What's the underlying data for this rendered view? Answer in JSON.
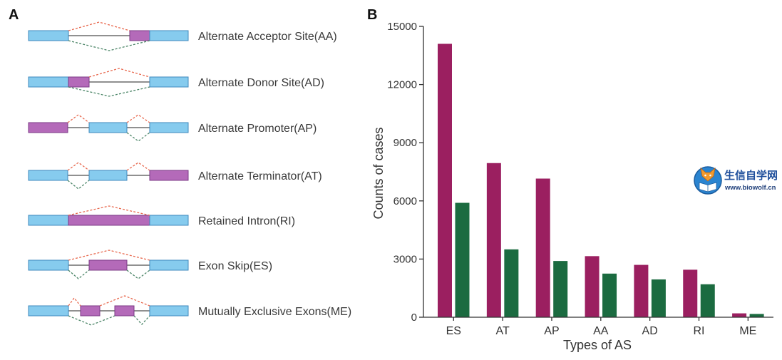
{
  "panel_a": {
    "label": "A",
    "rows": [
      "Alternate Acceptor Site(AA)",
      "Alternate Donor Site(AD)",
      "Alternate Promoter(AP)",
      "Alternate Terminator(AT)",
      "Retained Intron(RI)",
      "Exon Skip(ES)",
      "Mutually Exclusive Exons(ME)"
    ],
    "colors": {
      "constitutive_exon": "#86cbee",
      "alternative_exon": "#b46ab9",
      "upper_junction": "#e8694f",
      "lower_junction": "#4b8567"
    }
  },
  "panel_b": {
    "label": "B"
  },
  "chart_data": {
    "type": "bar",
    "categories": [
      "ES",
      "AT",
      "AP",
      "AA",
      "AD",
      "RI",
      "ME"
    ],
    "series": [
      {
        "values": [
          14100,
          7950,
          7150,
          3150,
          2700,
          2450,
          200
        ],
        "color": "#9b1f60"
      },
      {
        "values": [
          5900,
          3500,
          2900,
          2250,
          1950,
          1700,
          170
        ],
        "color": "#1b6b40"
      }
    ],
    "xlabel": "Types of AS",
    "ylabel": "Counts of cases",
    "ylim": [
      0,
      15000
    ],
    "yticks": [
      0,
      3000,
      6000,
      9000,
      12000,
      15000
    ],
    "grid": false,
    "legend": false
  },
  "watermark": {
    "icon": "wolf-book-logo-icon",
    "name": "生信自学网",
    "url": "www.biowolf.cn",
    "color": "#1f4f9c"
  }
}
